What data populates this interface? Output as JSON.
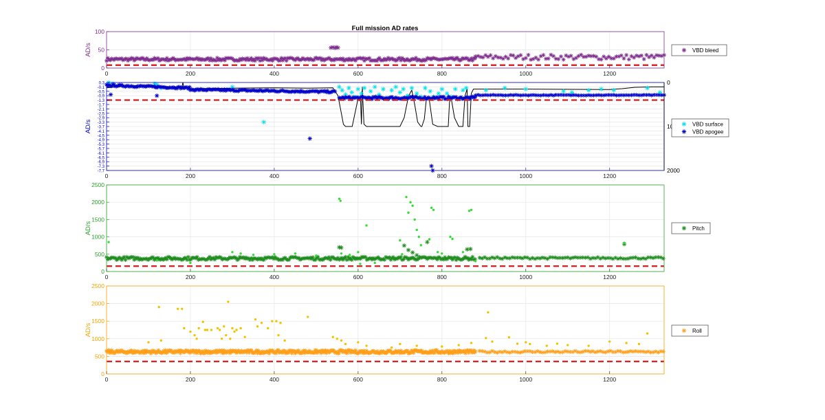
{
  "figure": {
    "title": "Full mission AD rates"
  },
  "chart_data": [
    {
      "id": "bleed",
      "type": "scatter",
      "ylabel": "AD/s",
      "color": "#7e2f8e",
      "xlim": [
        0,
        1330
      ],
      "ylim": [
        0,
        100
      ],
      "xticks": [
        0,
        200,
        400,
        600,
        800,
        1000,
        1200
      ],
      "yticks": [
        0,
        50,
        100
      ],
      "grid": true,
      "legend_position": "right",
      "threshold": {
        "value": 8,
        "color": "#d62728",
        "style": "dashed"
      },
      "series": [
        {
          "name": "VBD bleed",
          "marker": "*",
          "color": "#7e2f8e",
          "segments": [
            {
              "x_start": 0,
              "x_end": 880,
              "y": 24,
              "jitter": 4,
              "step": 3
            },
            {
              "x_start": 880,
              "x_end": 1330,
              "y": 30,
              "jitter": 7,
              "step": 6
            }
          ],
          "points": [
            [
              535,
              56
            ],
            [
              540,
              57
            ],
            [
              545,
              55
            ],
            [
              548,
              57
            ],
            [
              552,
              56
            ]
          ]
        }
      ]
    },
    {
      "id": "vbd",
      "type": "scatter",
      "ylabel": "AD/s",
      "color": "#0000cc",
      "xlim": [
        0,
        1330
      ],
      "ylim": [
        -7.7,
        0.3
      ],
      "xticks": [
        0,
        200,
        400,
        600,
        800,
        1000,
        1200
      ],
      "yticks": [
        0.3,
        -0.1,
        -0.5,
        -0.9,
        -1.3,
        -1.7,
        -2.1,
        -2.5,
        -2.9,
        -3.3,
        -3.7,
        -4.1,
        -4.5,
        -4.9,
        -5.3,
        -5.7,
        -6.1,
        -6.5,
        -6.9,
        -7.3,
        -7.7
      ],
      "grid": true,
      "right_axis": {
        "ylim": [
          0,
          2000
        ],
        "tick_labels": [
          "0",
          "1000",
          "2000"
        ],
        "color": "#000000"
      },
      "legend_position": "right",
      "threshold": {
        "value": -1.3,
        "color": "#d62728",
        "style": "dashed"
      },
      "series": [
        {
          "name": "VBD surface",
          "marker": "*",
          "color": "#00e5ee",
          "points": [
            [
              5,
              0.3
            ],
            [
              15,
              0.2
            ],
            [
              115,
              0.2
            ],
            [
              120,
              0.1
            ],
            [
              130,
              -0.2
            ],
            [
              300,
              -0.1
            ],
            [
              375,
              -3.3
            ],
            [
              555,
              -0.1
            ],
            [
              562,
              -0.4
            ],
            [
              570,
              -0.8
            ],
            [
              578,
              -0.2
            ],
            [
              585,
              -0.6
            ],
            [
              592,
              -1.0
            ],
            [
              600,
              -0.3
            ],
            [
              608,
              -0.7
            ],
            [
              615,
              -0.2
            ],
            [
              622,
              -1.1
            ],
            [
              630,
              -0.5
            ],
            [
              640,
              -0.1
            ],
            [
              650,
              -0.8
            ],
            [
              660,
              -0.3
            ],
            [
              672,
              -1.1
            ],
            [
              680,
              -0.4
            ],
            [
              690,
              -0.1
            ],
            [
              700,
              -0.6
            ],
            [
              708,
              -0.3
            ],
            [
              718,
              -0.9
            ],
            [
              728,
              -0.2
            ],
            [
              740,
              -0.7
            ],
            [
              750,
              -1.0
            ],
            [
              760,
              -0.2
            ],
            [
              772,
              -0.5
            ],
            [
              780,
              -1.0
            ],
            [
              792,
              -0.7
            ],
            [
              800,
              -0.3
            ],
            [
              812,
              -0.7
            ],
            [
              822,
              -1.0
            ],
            [
              832,
              -0.3
            ],
            [
              842,
              -1.2
            ],
            [
              850,
              -0.4
            ],
            [
              858,
              -0.2
            ],
            [
              868,
              -1.1
            ],
            [
              905,
              -0.4
            ],
            [
              950,
              -0.2
            ],
            [
              1000,
              -0.3
            ],
            [
              1090,
              -0.5
            ],
            [
              1110,
              -0.6
            ],
            [
              1150,
              -0.4
            ],
            [
              1180,
              -0.3
            ],
            [
              1210,
              -0.4
            ],
            [
              1290,
              -0.2
            ],
            [
              1320,
              -0.6
            ]
          ]
        },
        {
          "name": "VBD apogee",
          "marker": "*",
          "color": "#0000cc",
          "segments": [
            {
              "x_start": 0,
              "x_end": 200,
              "y_start": 0.05,
              "y_end": -0.2,
              "jitter": 0.08,
              "step": 3
            },
            {
              "x_start": 200,
              "x_end": 545,
              "y_start": -0.35,
              "y_end": -0.55,
              "jitter": 0.08,
              "step": 3
            },
            {
              "x_start": 555,
              "x_end": 880,
              "y": -1.1,
              "jitter": 0.12,
              "step": 3
            },
            {
              "x_start": 880,
              "x_end": 1330,
              "y": -0.85,
              "jitter": 0.03,
              "step": 6
            }
          ],
          "points": [
            [
              10,
              -0.8
            ],
            [
              120,
              -0.9
            ],
            [
              485,
              -4.8
            ],
            [
              775,
              -7.3
            ],
            [
              778,
              -7.7
            ]
          ]
        }
      ],
      "depth_line": {
        "axis": "right",
        "color": "#000000",
        "x": [
          0,
          50,
          100,
          150,
          180,
          182,
          184,
          200,
          300,
          400,
          480,
          540,
          552,
          560,
          565,
          570,
          578,
          586,
          600,
          606,
          608,
          610,
          614,
          620,
          700,
          710,
          720,
          728,
          735,
          742,
          750,
          752,
          758,
          763,
          770,
          778,
          790,
          800,
          815,
          818,
          822,
          830,
          840,
          850,
          855,
          860,
          862,
          866,
          870,
          875,
          880,
          1000,
          1200,
          1230,
          1260,
          1300,
          1330
        ],
        "y": [
          120,
          80,
          60,
          100,
          90,
          0,
          100,
          140,
          130,
          120,
          130,
          120,
          300,
          700,
          950,
          1000,
          1000,
          1000,
          360,
          430,
          950,
          100,
          950,
          1000,
          1000,
          800,
          320,
          170,
          500,
          900,
          1000,
          1000,
          830,
          350,
          400,
          950,
          1000,
          1000,
          1000,
          450,
          350,
          800,
          1000,
          1000,
          300,
          150,
          1000,
          1000,
          250,
          150,
          150,
          150,
          160,
          140,
          110,
          100,
          100
        ]
      }
    },
    {
      "id": "pitch",
      "type": "scatter",
      "ylabel": "AD/s",
      "color": "#2ca02c",
      "xlim": [
        0,
        1330
      ],
      "ylim": [
        0,
        2500
      ],
      "xticks": [
        0,
        200,
        400,
        600,
        800,
        1000,
        1200
      ],
      "yticks": [
        0,
        500,
        1000,
        1500,
        2000,
        2500
      ],
      "grid": true,
      "legend_position": "right",
      "threshold": {
        "value": 155,
        "color": "#d62728",
        "style": "dashed"
      },
      "series": [
        {
          "name": "Pitch",
          "marker": "*",
          "color": "#1e8c1e",
          "segments": [
            {
              "x_start": 0,
              "x_end": 880,
              "y": 380,
              "jitter": 45,
              "step": 3
            },
            {
              "x_start": 890,
              "x_end": 1330,
              "y": 390,
              "jitter": 25,
              "step": 6
            }
          ],
          "points": [
            [
              555,
              700
            ],
            [
              560,
              690
            ],
            [
              710,
              750
            ],
            [
              720,
              620
            ],
            [
              730,
              550
            ],
            [
              740,
              470
            ],
            [
              765,
              850
            ],
            [
              860,
              640
            ],
            [
              868,
              650
            ],
            [
              1235,
              790
            ]
          ],
          "dots": {
            "color": "#33dd33",
            "points": [
              [
                5,
                850
              ],
              [
                120,
                320
              ],
              [
                200,
                250
              ],
              [
                300,
                560
              ],
              [
                320,
                520
              ],
              [
                350,
                480
              ],
              [
                400,
                500
              ],
              [
                450,
                520
              ],
              [
                500,
                460
              ],
              [
                555,
                2100
              ],
              [
                558,
                2040
              ],
              [
                560,
                520
              ],
              [
                580,
                480
              ],
              [
                600,
                560
              ],
              [
                605,
                220
              ],
              [
                620,
                1330
              ],
              [
                640,
                250
              ],
              [
                700,
                900
              ],
              [
                705,
                500
              ],
              [
                715,
                2150
              ],
              [
                720,
                1700
              ],
              [
                725,
                2000
              ],
              [
                730,
                1900
              ],
              [
                735,
                1500
              ],
              [
                740,
                1200
              ],
              [
                745,
                1000
              ],
              [
                750,
                760
              ],
              [
                770,
                930
              ],
              [
                775,
                1840
              ],
              [
                780,
                1780
              ],
              [
                790,
                560
              ],
              [
                800,
                520
              ],
              [
                820,
                1000
              ],
              [
                825,
                940
              ],
              [
                850,
                560
              ],
              [
                865,
                1750
              ],
              [
                870,
                1780
              ],
              [
                880,
                300
              ],
              [
                1235,
                830
              ]
            ]
          }
        }
      ]
    },
    {
      "id": "roll",
      "type": "scatter",
      "ylabel": "AD/s",
      "color": "#f5a300",
      "xlim": [
        0,
        1330
      ],
      "ylim": [
        0,
        2500
      ],
      "xticks": [
        0,
        200,
        400,
        600,
        800,
        1000,
        1200
      ],
      "yticks": [
        0,
        500,
        1000,
        1500,
        2000,
        2500
      ],
      "grid": true,
      "legend_position": "right",
      "threshold": {
        "value": 355,
        "color": "#d62728",
        "style": "dashed"
      },
      "series": [
        {
          "name": "Roll",
          "marker": "*",
          "color": "#ff9f1a",
          "segments": [
            {
              "x_start": 0,
              "x_end": 880,
              "y": 630,
              "jitter": 45,
              "step": 2
            },
            {
              "x_start": 890,
              "x_end": 1330,
              "y": 630,
              "jitter": 25,
              "step": 6
            }
          ],
          "dots": {
            "color": "#f0c400",
            "points": [
              [
                100,
                900
              ],
              [
                125,
                1900
              ],
              [
                130,
                950
              ],
              [
                170,
                1850
              ],
              [
                180,
                1850
              ],
              [
                185,
                1300
              ],
              [
                200,
                1200
              ],
              [
                210,
                1100
              ],
              [
                215,
                1000
              ],
              [
                220,
                1300
              ],
              [
                230,
                1480
              ],
              [
                235,
                1250
              ],
              [
                240,
                1250
              ],
              [
                250,
                1250
              ],
              [
                265,
                1300
              ],
              [
                270,
                1250
              ],
              [
                275,
                1000
              ],
              [
                280,
                1350
              ],
              [
                285,
                1100
              ],
              [
                290,
                2050
              ],
              [
                295,
                1000
              ],
              [
                300,
                1300
              ],
              [
                305,
                1200
              ],
              [
                310,
                1250
              ],
              [
                320,
                1300
              ],
              [
                330,
                1050
              ],
              [
                355,
                1550
              ],
              [
                360,
                1350
              ],
              [
                370,
                1450
              ],
              [
                385,
                1300
              ],
              [
                395,
                1500
              ],
              [
                405,
                1500
              ],
              [
                410,
                1100
              ],
              [
                415,
                1450
              ],
              [
                425,
                950
              ],
              [
                480,
                1620
              ],
              [
                540,
                1050
              ],
              [
                550,
                1000
              ],
              [
                560,
                950
              ],
              [
                570,
                850
              ],
              [
                600,
                900
              ],
              [
                620,
                800
              ],
              [
                680,
                750
              ],
              [
                700,
                850
              ],
              [
                740,
                800
              ],
              [
                800,
                780
              ],
              [
                840,
                820
              ],
              [
                870,
                880
              ],
              [
                905,
                1020
              ],
              [
                910,
                1750
              ],
              [
                920,
                920
              ],
              [
                960,
                1040
              ],
              [
                980,
                860
              ],
              [
                1000,
                900
              ],
              [
                1010,
                850
              ],
              [
                1050,
                800
              ],
              [
                1075,
                860
              ],
              [
                1100,
                820
              ],
              [
                1150,
                800
              ],
              [
                1200,
                920
              ],
              [
                1240,
                880
              ],
              [
                1270,
                850
              ],
              [
                1290,
                1150
              ]
            ]
          }
        }
      ]
    }
  ]
}
